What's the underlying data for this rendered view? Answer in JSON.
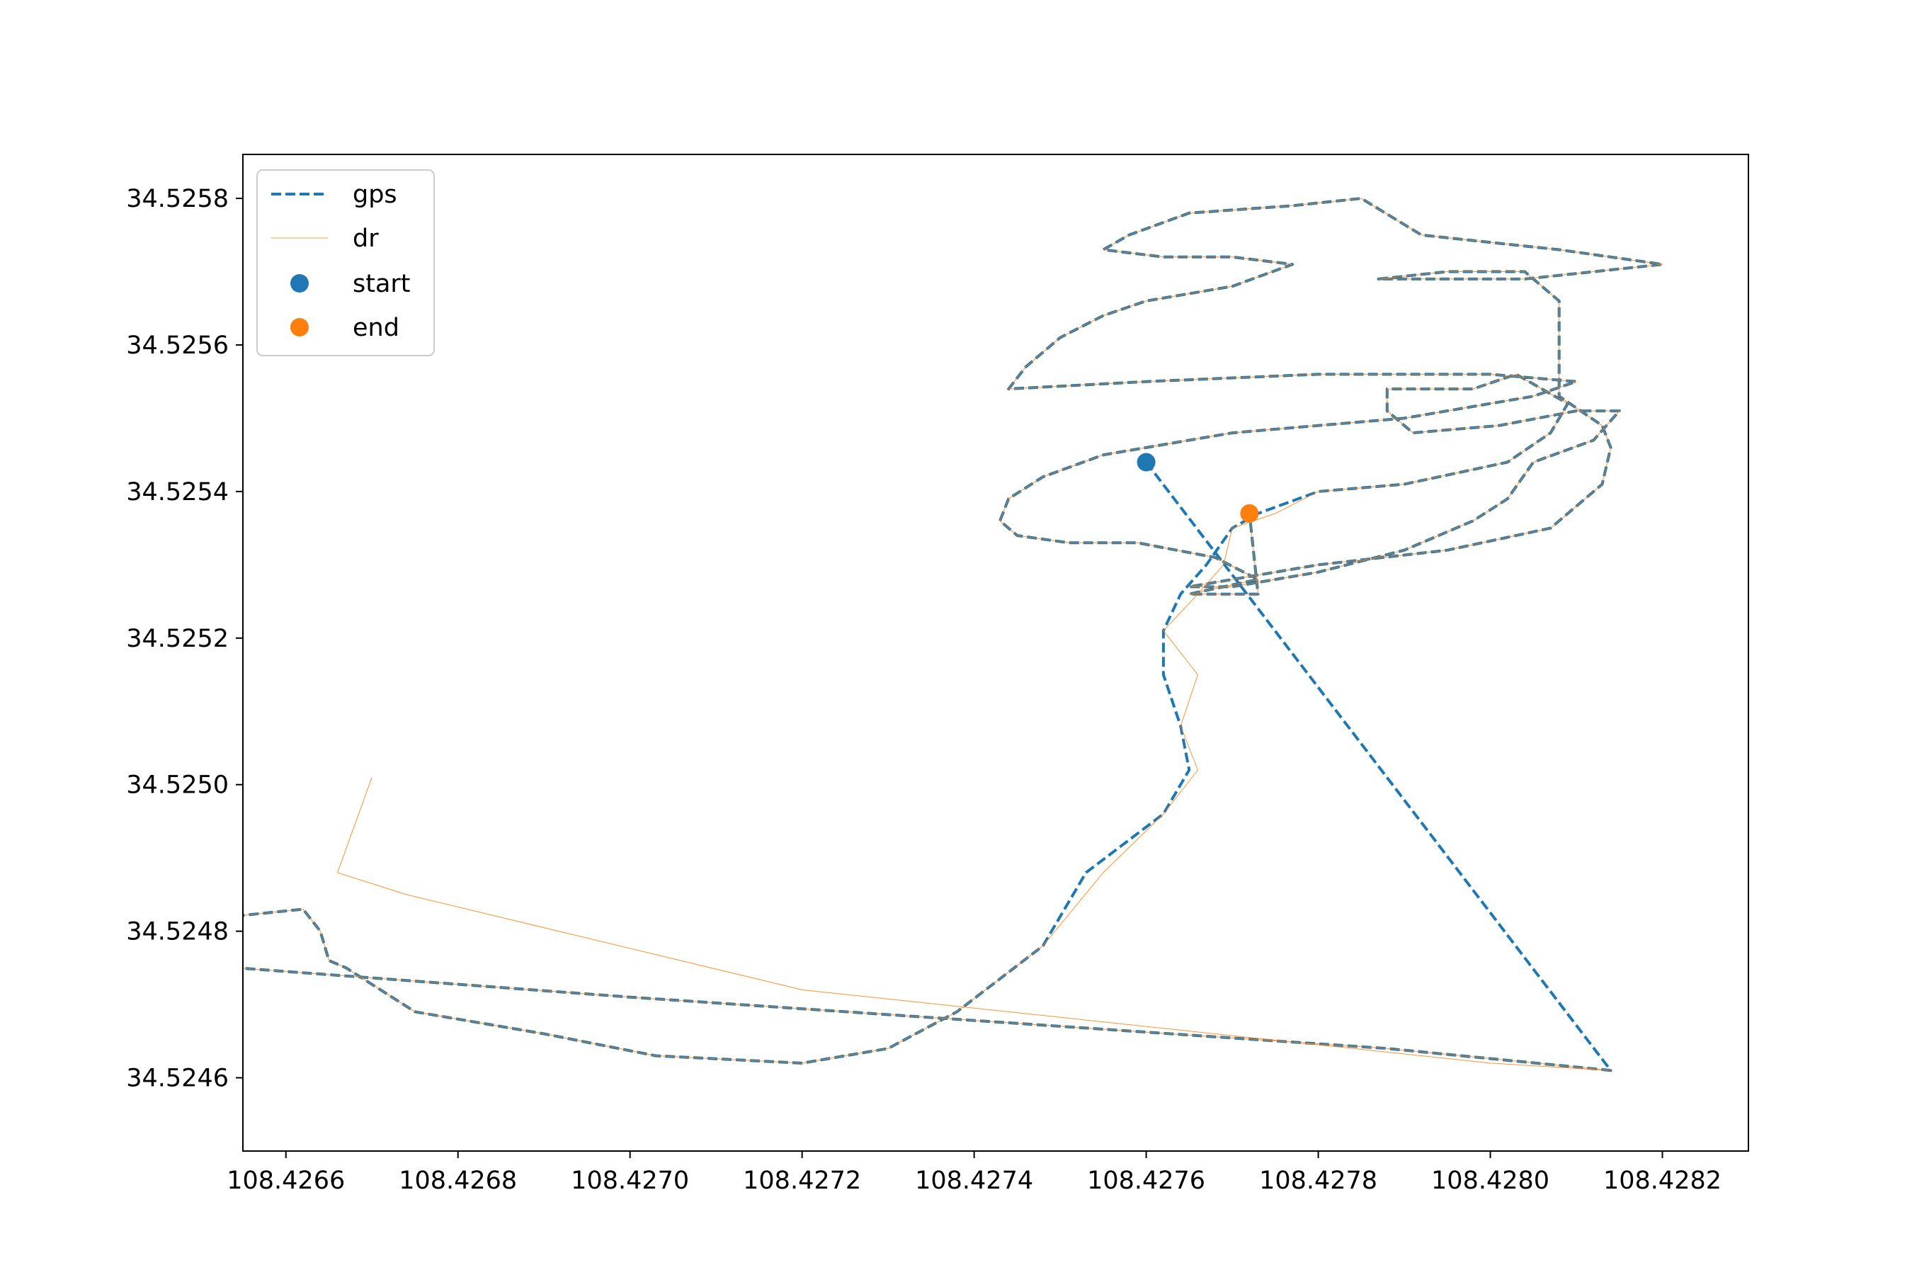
{
  "chart_data": {
    "type": "line",
    "title": "",
    "xlabel": "",
    "ylabel": "",
    "xlim": [
      108.42655,
      108.4283
    ],
    "ylim": [
      34.5245,
      34.52586
    ],
    "grid": false,
    "legend_position": "top-left",
    "x_ticks": [
      "108.4266",
      "108.4268",
      "108.4270",
      "108.4272",
      "108.4274",
      "108.4276",
      "108.4278",
      "108.4280",
      "108.4282"
    ],
    "y_ticks": [
      "34.5246",
      "34.5248",
      "34.5250",
      "34.5252",
      "34.5254",
      "34.5256",
      "34.5258"
    ],
    "series": [
      {
        "name": "gps",
        "style": "dashed",
        "color": "#1f77b4",
        "points": [
          [
            108.4276,
            34.52544
          ],
          [
            108.42814,
            34.52461
          ],
          [
            108.42788,
            34.52464
          ],
          [
            108.427,
            34.52471
          ],
          [
            108.4262,
            34.52478
          ],
          [
            108.42662,
            34.52483
          ],
          [
            108.42664,
            34.5248
          ],
          [
            108.42665,
            34.52476
          ],
          [
            108.42667,
            34.52475
          ],
          [
            108.42675,
            34.52469
          ],
          [
            108.4269,
            34.52466
          ],
          [
            108.42703,
            34.52463
          ],
          [
            108.4272,
            34.52462
          ],
          [
            108.4273,
            34.52464
          ],
          [
            108.42738,
            34.52469
          ],
          [
            108.42748,
            34.52478
          ],
          [
            108.42753,
            34.52488
          ],
          [
            108.42762,
            34.52496
          ],
          [
            108.42765,
            34.52502
          ],
          [
            108.42764,
            34.52508
          ],
          [
            108.42762,
            34.52515
          ],
          [
            108.42762,
            34.52521
          ],
          [
            108.42764,
            34.52526
          ],
          [
            108.42767,
            34.5253
          ],
          [
            108.4277,
            34.52535
          ],
          [
            108.42773,
            34.52537
          ],
          [
            108.4278,
            34.5254
          ],
          [
            108.4279,
            34.52541
          ],
          [
            108.42802,
            34.52544
          ],
          [
            108.42807,
            34.52548
          ],
          [
            108.42809,
            34.52552
          ],
          [
            108.42803,
            34.52556
          ],
          [
            108.42798,
            34.52554
          ],
          [
            108.42788,
            34.52554
          ],
          [
            108.42788,
            34.52551
          ],
          [
            108.42791,
            34.52548
          ],
          [
            108.42801,
            34.52549
          ],
          [
            108.4281,
            34.52551
          ],
          [
            108.42815,
            34.52551
          ],
          [
            108.42812,
            34.52547
          ],
          [
            108.42805,
            34.52544
          ],
          [
            108.42802,
            34.52539
          ],
          [
            108.42798,
            34.52536
          ],
          [
            108.4279,
            34.52532
          ],
          [
            108.4278,
            34.52529
          ],
          [
            108.4277,
            34.52527
          ],
          [
            108.42765,
            34.52527
          ],
          [
            108.4278,
            34.5253
          ],
          [
            108.42795,
            34.52532
          ],
          [
            108.42807,
            34.52535
          ],
          [
            108.42813,
            34.52541
          ],
          [
            108.42814,
            34.52546
          ],
          [
            108.42813,
            34.52549
          ],
          [
            108.42808,
            34.52553
          ],
          [
            108.42808,
            34.5256
          ],
          [
            108.42808,
            34.52566
          ],
          [
            108.42804,
            34.5257
          ],
          [
            108.42795,
            34.5257
          ],
          [
            108.42787,
            34.52569
          ],
          [
            108.42804,
            34.52569
          ],
          [
            108.4282,
            34.52571
          ],
          [
            108.42808,
            34.52573
          ],
          [
            108.42792,
            34.52575
          ],
          [
            108.42785,
            34.5258
          ],
          [
            108.42777,
            34.52579
          ],
          [
            108.42765,
            34.52578
          ],
          [
            108.42758,
            34.52575
          ],
          [
            108.42755,
            34.52573
          ],
          [
            108.42762,
            34.52572
          ],
          [
            108.4277,
            34.52572
          ],
          [
            108.42777,
            34.52571
          ],
          [
            108.4277,
            34.52568
          ],
          [
            108.4276,
            34.52566
          ],
          [
            108.42755,
            34.52564
          ],
          [
            108.4275,
            34.52561
          ],
          [
            108.42746,
            34.52557
          ],
          [
            108.42744,
            34.52554
          ],
          [
            108.4276,
            34.52555
          ],
          [
            108.4278,
            34.52556
          ],
          [
            108.428,
            34.52556
          ],
          [
            108.4281,
            34.52555
          ],
          [
            108.42805,
            34.52553
          ],
          [
            108.4279,
            34.5255
          ],
          [
            108.4277,
            34.52548
          ],
          [
            108.42755,
            34.52545
          ],
          [
            108.42748,
            34.52542
          ],
          [
            108.42744,
            34.52539
          ],
          [
            108.42743,
            34.52536
          ],
          [
            108.42745,
            34.52534
          ],
          [
            108.42751,
            34.52533
          ],
          [
            108.42759,
            34.52533
          ],
          [
            108.42768,
            34.52531
          ],
          [
            108.42773,
            34.52528
          ],
          [
            108.42765,
            34.52526
          ],
          [
            108.42773,
            34.52526
          ],
          [
            108.42772,
            34.52537
          ]
        ]
      },
      {
        "name": "dr",
        "style": "solid",
        "color": "#ff7f0e",
        "points": [
          [
            108.4267,
            34.52501
          ],
          [
            108.42666,
            34.52488
          ],
          [
            108.42674,
            34.52485
          ],
          [
            108.4272,
            34.52472
          ],
          [
            108.428,
            34.52462
          ],
          [
            108.42814,
            34.52461
          ],
          [
            108.42788,
            34.52464
          ],
          [
            108.427,
            34.52471
          ],
          [
            108.4262,
            34.52478
          ],
          [
            108.42662,
            34.52483
          ],
          [
            108.42664,
            34.5248
          ],
          [
            108.42665,
            34.52476
          ],
          [
            108.42667,
            34.52475
          ],
          [
            108.42675,
            34.52469
          ],
          [
            108.4269,
            34.52466
          ],
          [
            108.42703,
            34.52463
          ],
          [
            108.4272,
            34.52462
          ],
          [
            108.4273,
            34.52464
          ],
          [
            108.42738,
            34.52469
          ],
          [
            108.42748,
            34.52478
          ],
          [
            108.42755,
            34.52488
          ],
          [
            108.42762,
            34.52496
          ],
          [
            108.42766,
            34.52502
          ],
          [
            108.42764,
            34.52508
          ],
          [
            108.42766,
            34.52515
          ],
          [
            108.42762,
            34.52521
          ],
          [
            108.42766,
            34.52526
          ],
          [
            108.42769,
            34.5253
          ],
          [
            108.4277,
            34.52535
          ],
          [
            108.42775,
            34.52537
          ],
          [
            108.4278,
            34.5254
          ],
          [
            108.4279,
            34.52541
          ],
          [
            108.42802,
            34.52544
          ],
          [
            108.42807,
            34.52548
          ],
          [
            108.42809,
            34.52552
          ],
          [
            108.42803,
            34.52556
          ],
          [
            108.42798,
            34.52554
          ],
          [
            108.42788,
            34.52554
          ],
          [
            108.42788,
            34.52551
          ],
          [
            108.42791,
            34.52548
          ],
          [
            108.42801,
            34.52549
          ],
          [
            108.4281,
            34.52551
          ],
          [
            108.42815,
            34.52551
          ],
          [
            108.42812,
            34.52547
          ],
          [
            108.42805,
            34.52544
          ],
          [
            108.42802,
            34.52539
          ],
          [
            108.42798,
            34.52536
          ],
          [
            108.4279,
            34.52532
          ],
          [
            108.4278,
            34.52529
          ],
          [
            108.4277,
            34.52527
          ],
          [
            108.42765,
            34.52527
          ],
          [
            108.4278,
            34.5253
          ],
          [
            108.42795,
            34.52532
          ],
          [
            108.42807,
            34.52535
          ],
          [
            108.42813,
            34.52541
          ],
          [
            108.42814,
            34.52546
          ],
          [
            108.42813,
            34.52549
          ],
          [
            108.42808,
            34.52553
          ],
          [
            108.42808,
            34.5256
          ],
          [
            108.42808,
            34.52566
          ],
          [
            108.42804,
            34.5257
          ],
          [
            108.42795,
            34.5257
          ],
          [
            108.42787,
            34.52569
          ],
          [
            108.42804,
            34.52569
          ],
          [
            108.4282,
            34.52571
          ],
          [
            108.42808,
            34.52573
          ],
          [
            108.42792,
            34.52575
          ],
          [
            108.42785,
            34.5258
          ],
          [
            108.42777,
            34.52579
          ],
          [
            108.42765,
            34.52578
          ],
          [
            108.42758,
            34.52575
          ],
          [
            108.42755,
            34.52573
          ],
          [
            108.42762,
            34.52572
          ],
          [
            108.4277,
            34.52572
          ],
          [
            108.42777,
            34.52571
          ],
          [
            108.4277,
            34.52568
          ],
          [
            108.4276,
            34.52566
          ],
          [
            108.42755,
            34.52564
          ],
          [
            108.4275,
            34.52561
          ],
          [
            108.42746,
            34.52557
          ],
          [
            108.42744,
            34.52554
          ],
          [
            108.4276,
            34.52555
          ],
          [
            108.4278,
            34.52556
          ],
          [
            108.428,
            34.52556
          ],
          [
            108.4281,
            34.52555
          ],
          [
            108.42805,
            34.52553
          ],
          [
            108.4279,
            34.5255
          ],
          [
            108.4277,
            34.52548
          ],
          [
            108.42755,
            34.52545
          ],
          [
            108.42748,
            34.52542
          ],
          [
            108.42744,
            34.52539
          ],
          [
            108.42743,
            34.52536
          ],
          [
            108.42745,
            34.52534
          ],
          [
            108.42751,
            34.52533
          ],
          [
            108.42759,
            34.52533
          ],
          [
            108.42768,
            34.52531
          ],
          [
            108.42773,
            34.52528
          ],
          [
            108.42765,
            34.52526
          ],
          [
            108.42773,
            34.52526
          ],
          [
            108.42772,
            34.52537
          ]
        ]
      },
      {
        "name": "start",
        "style": "marker",
        "color": "#1f77b4",
        "points": [
          [
            108.4276,
            34.52544
          ]
        ]
      },
      {
        "name": "end",
        "style": "marker",
        "color": "#ff7f0e",
        "points": [
          [
            108.42772,
            34.52537
          ]
        ]
      }
    ]
  }
}
